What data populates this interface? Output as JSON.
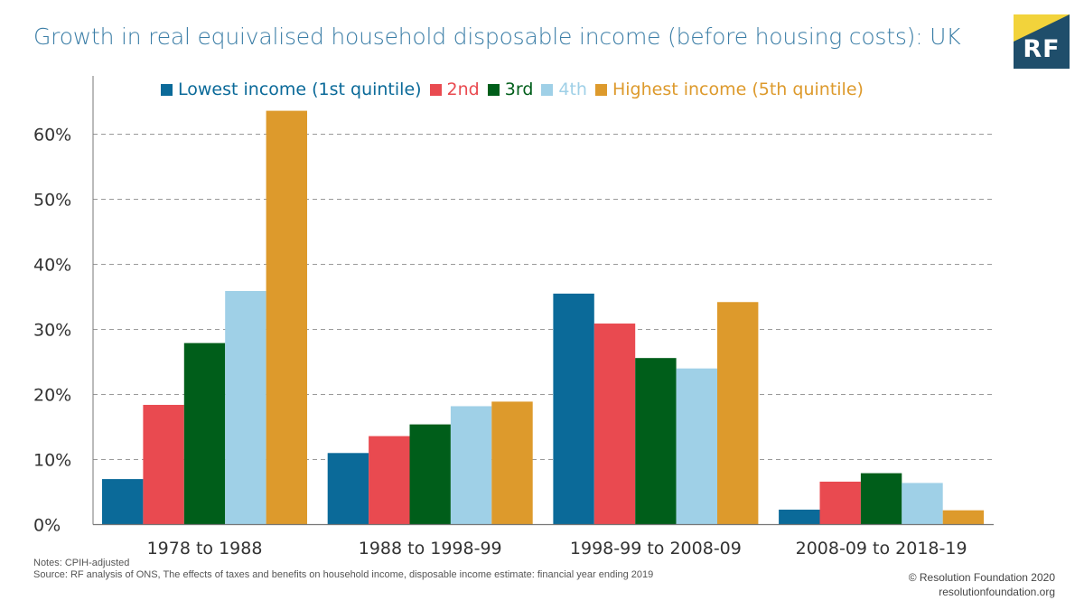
{
  "title": "Growth in real equivalised household disposable income (before housing costs): UK",
  "logo": {
    "text": "RF",
    "colors": {
      "background": "#1F4E6B",
      "accent": "#F2D33B"
    }
  },
  "footer": {
    "notes": "Notes: CPIH-adjusted",
    "source": "Source: RF analysis of ONS, The effects of taxes and benefits on household income, disposable income estimate: financial year ending 2019",
    "copyright": "© Resolution Foundation 2020",
    "website": "resolutionfoundation.org"
  },
  "chart_data": {
    "type": "bar",
    "categories": [
      "1978 to 1988",
      "1988 to 1998-99",
      "1998-99 to 2008-09",
      "2008-09 to 2018-19"
    ],
    "series": [
      {
        "name": "Lowest income (1st quintile)",
        "color": "#0B6A99",
        "values": [
          7,
          11,
          35.5,
          2.3
        ]
      },
      {
        "name": "2nd",
        "color": "#E94A50",
        "values": [
          18.4,
          13.6,
          30.9,
          6.6
        ]
      },
      {
        "name": "3rd",
        "color": "#005E1A",
        "values": [
          27.9,
          15.4,
          25.6,
          7.9
        ]
      },
      {
        "name": "4th",
        "color": "#9FD0E7",
        "values": [
          35.9,
          18.2,
          24,
          6.4
        ]
      },
      {
        "name": "Highest income (5th quintile)",
        "color": "#DD9A2C",
        "values": [
          63.6,
          18.9,
          34.2,
          2.2
        ]
      }
    ],
    "yticks": [
      "0%",
      "10%",
      "20%",
      "30%",
      "40%",
      "50%",
      "60%"
    ],
    "ylim": [
      0,
      65
    ],
    "grid": true,
    "legend_position": "top"
  }
}
